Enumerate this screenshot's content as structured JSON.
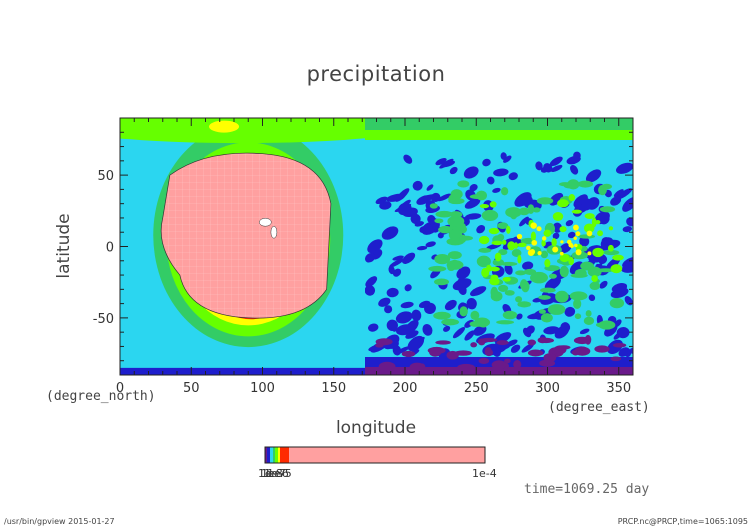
{
  "title": "precipitation",
  "xlabel": "longitude",
  "ylabel": "latitude",
  "xunit": "(degree_east)",
  "yunit": "(degree_north)",
  "time_label": "time=1069.25 day",
  "footer_left": "/usr/bin/gpview  2015-01-27",
  "footer_right": "PRCP.nc@PRCP,time=1065:1095",
  "chart_data": {
    "type": "heatmap",
    "title": "precipitation",
    "xlabel": "longitude",
    "ylabel": "latitude",
    "xlim": [
      0,
      360
    ],
    "ylim": [
      -90,
      90
    ],
    "x_ticks": [
      0,
      50,
      100,
      150,
      200,
      250,
      300,
      350
    ],
    "y_ticks": [
      -50,
      0,
      50
    ],
    "colorbar": {
      "min_label": "1e-8",
      "max_label": "1e-4",
      "overlapping_labels": [
        "1e-8",
        "1e-7",
        "1e-6",
        "1e-5"
      ],
      "colors": [
        "#6a1a8a",
        "#1e1ecc",
        "#2bd6f0",
        "#33cc66",
        "#66ff00",
        "#ffff00",
        "#ff2a00",
        "#ffa0a0"
      ]
    },
    "features": {
      "core_center": [
        95,
        5
      ],
      "core_value": "1e-4",
      "core_color": "#ffa0a0"
    }
  }
}
